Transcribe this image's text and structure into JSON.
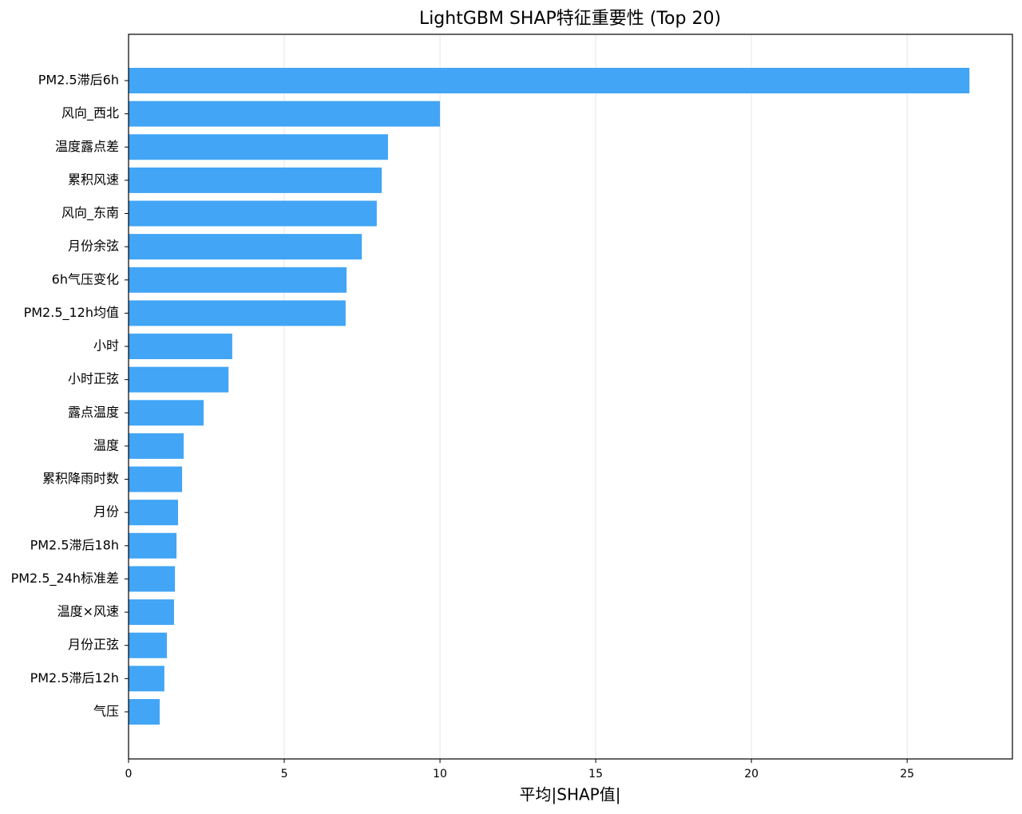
{
  "chart_data": {
    "type": "barh",
    "title": "LightGBM SHAP特征重要性 (Top 20)",
    "x_label": "平均|SHAP值|",
    "categories": [
      "PM2.5滞后6h",
      "风向_西北",
      "温度露点差",
      "累积风速",
      "风向_东南",
      "月份余弦",
      "6h气压变化",
      "PM2.5_12h均值",
      "小时",
      "小时正弦",
      "露点温度",
      "温度",
      "累积降雨时数",
      "月份",
      "PM2.5滞后18h",
      "PM2.5_24h标准差",
      "温度×风速",
      "月份正弦",
      "PM2.5滞后12h",
      "气压"
    ],
    "values": [
      27.0,
      10.0,
      8.33,
      8.13,
      7.97,
      7.49,
      7.0,
      6.97,
      3.33,
      3.21,
      2.41,
      1.77,
      1.72,
      1.59,
      1.54,
      1.49,
      1.46,
      1.23,
      1.15,
      1.0
    ],
    "color": "#42a5f5",
    "xlim": [
      0,
      28.38
    ],
    "xticks": [
      0,
      5,
      10,
      15,
      20,
      25
    ],
    "grid": true
  }
}
